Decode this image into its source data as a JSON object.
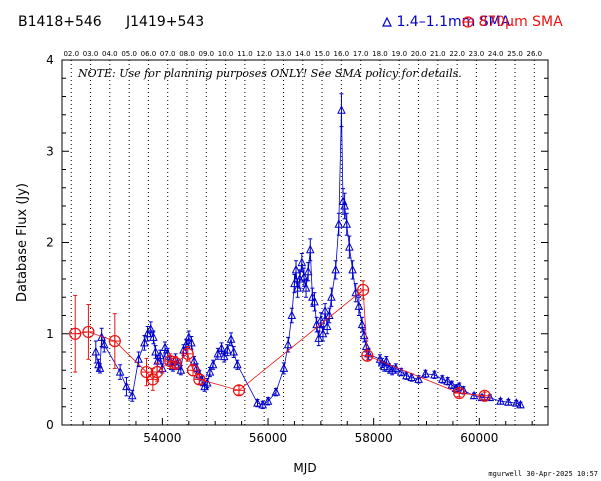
{
  "header": {
    "source": "B1418+546",
    "alias": "J1419+543",
    "legend_sma": "1.4–1.1mm SMA",
    "legend_870": "870μm SMA"
  },
  "colors": {
    "sma": "#0000cc",
    "s870": "#ee1111",
    "grid": "#000000",
    "text": "#000000"
  },
  "footer": "mgurwell 30-Apr-2025 10:57",
  "chart_data": {
    "type": "scatter",
    "title": "",
    "xlabel": "MJD",
    "ylabel": "Database Flux (Jy)",
    "xlim": [
      52100,
      61300
    ],
    "ylim": [
      0,
      4
    ],
    "x_ticks": [
      54000,
      56000,
      58000,
      60000
    ],
    "y_ticks": [
      0,
      1,
      2,
      3,
      4
    ],
    "note": "NOTE: Use for planning purposes ONLY! See SMA policy for details.",
    "year_lines": [
      {
        "label": "02.0",
        "mjd": 52275
      },
      {
        "label": "03.0",
        "mjd": 52640
      },
      {
        "label": "04.0",
        "mjd": 53005
      },
      {
        "label": "05.0",
        "mjd": 53371
      },
      {
        "label": "06.0",
        "mjd": 53736
      },
      {
        "label": "07.0",
        "mjd": 54101
      },
      {
        "label": "08.0",
        "mjd": 54466
      },
      {
        "label": "09.0",
        "mjd": 54832
      },
      {
        "label": "10.0",
        "mjd": 55197
      },
      {
        "label": "11.0",
        "mjd": 55562
      },
      {
        "label": "12.0",
        "mjd": 55927
      },
      {
        "label": "13.0",
        "mjd": 56293
      },
      {
        "label": "14.0",
        "mjd": 56658
      },
      {
        "label": "15.0",
        "mjd": 57023
      },
      {
        "label": "16.0",
        "mjd": 57388
      },
      {
        "label": "17.0",
        "mjd": 57754
      },
      {
        "label": "18.0",
        "mjd": 58119
      },
      {
        "label": "19.0",
        "mjd": 58484
      },
      {
        "label": "20.0",
        "mjd": 58849
      },
      {
        "label": "21.0",
        "mjd": 59215
      },
      {
        "label": "22.0",
        "mjd": 59580
      },
      {
        "label": "23.0",
        "mjd": 59945
      },
      {
        "label": "24.0",
        "mjd": 60310
      },
      {
        "label": "25.0",
        "mjd": 60676
      },
      {
        "label": "26.0",
        "mjd": 61041
      }
    ],
    "series": [
      {
        "name": "1.4–1.1mm SMA",
        "marker": "triangle",
        "points": [
          {
            "x": 52740,
            "y": 0.8,
            "err": 0.12
          },
          {
            "x": 52790,
            "y": 0.66,
            "err": 0.06
          },
          {
            "x": 52820,
            "y": 0.62,
            "err": 0.05
          },
          {
            "x": 52850,
            "y": 0.96,
            "err": 0.1
          },
          {
            "x": 52900,
            "y": 0.88,
            "err": 0.08
          },
          {
            "x": 53200,
            "y": 0.58,
            "err": 0.08
          },
          {
            "x": 53320,
            "y": 0.42,
            "err": 0.1
          },
          {
            "x": 53430,
            "y": 0.32,
            "err": 0.06
          },
          {
            "x": 53550,
            "y": 0.72,
            "err": 0.08
          },
          {
            "x": 53660,
            "y": 0.9,
            "err": 0.08
          },
          {
            "x": 53720,
            "y": 1.0,
            "err": 0.08
          },
          {
            "x": 53780,
            "y": 1.05,
            "err": 0.08
          },
          {
            "x": 53830,
            "y": 0.96,
            "err": 0.07
          },
          {
            "x": 53870,
            "y": 0.8,
            "err": 0.07
          },
          {
            "x": 53910,
            "y": 0.7,
            "err": 0.06
          },
          {
            "x": 53960,
            "y": 0.76,
            "err": 0.06
          },
          {
            "x": 54000,
            "y": 0.62,
            "err": 0.05
          },
          {
            "x": 54050,
            "y": 0.85,
            "err": 0.06
          },
          {
            "x": 54100,
            "y": 0.78,
            "err": 0.06
          },
          {
            "x": 54150,
            "y": 0.7,
            "err": 0.05
          },
          {
            "x": 54200,
            "y": 0.64,
            "err": 0.05
          },
          {
            "x": 54250,
            "y": 0.72,
            "err": 0.06
          },
          {
            "x": 54300,
            "y": 0.66,
            "err": 0.05
          },
          {
            "x": 54350,
            "y": 0.6,
            "err": 0.05
          },
          {
            "x": 54400,
            "y": 0.82,
            "err": 0.06
          },
          {
            "x": 54450,
            "y": 0.88,
            "err": 0.06
          },
          {
            "x": 54500,
            "y": 0.96,
            "err": 0.07
          },
          {
            "x": 54550,
            "y": 0.9,
            "err": 0.07
          },
          {
            "x": 54600,
            "y": 0.7,
            "err": 0.05
          },
          {
            "x": 54650,
            "y": 0.62,
            "err": 0.05
          },
          {
            "x": 54700,
            "y": 0.55,
            "err": 0.05
          },
          {
            "x": 54750,
            "y": 0.48,
            "err": 0.05
          },
          {
            "x": 54800,
            "y": 0.42,
            "err": 0.05
          },
          {
            "x": 54850,
            "y": 0.46,
            "err": 0.05
          },
          {
            "x": 54900,
            "y": 0.58,
            "err": 0.05
          },
          {
            "x": 54960,
            "y": 0.66,
            "err": 0.05
          },
          {
            "x": 55050,
            "y": 0.78,
            "err": 0.06
          },
          {
            "x": 55120,
            "y": 0.84,
            "err": 0.06
          },
          {
            "x": 55170,
            "y": 0.75,
            "err": 0.06
          },
          {
            "x": 55230,
            "y": 0.82,
            "err": 0.06
          },
          {
            "x": 55300,
            "y": 0.94,
            "err": 0.07
          },
          {
            "x": 55350,
            "y": 0.8,
            "err": 0.06
          },
          {
            "x": 55420,
            "y": 0.66,
            "err": 0.05
          },
          {
            "x": 55800,
            "y": 0.24,
            "err": 0.04
          },
          {
            "x": 55900,
            "y": 0.22,
            "err": 0.04
          },
          {
            "x": 56000,
            "y": 0.26,
            "err": 0.04
          },
          {
            "x": 56150,
            "y": 0.36,
            "err": 0.04
          },
          {
            "x": 56300,
            "y": 0.62,
            "err": 0.06
          },
          {
            "x": 56380,
            "y": 0.88,
            "err": 0.08
          },
          {
            "x": 56450,
            "y": 1.2,
            "err": 0.08
          },
          {
            "x": 56500,
            "y": 1.55,
            "err": 0.1
          },
          {
            "x": 56530,
            "y": 1.7,
            "err": 0.1
          },
          {
            "x": 56560,
            "y": 1.5,
            "err": 0.1
          },
          {
            "x": 56600,
            "y": 1.6,
            "err": 0.1
          },
          {
            "x": 56640,
            "y": 1.78,
            "err": 0.1
          },
          {
            "x": 56680,
            "y": 1.62,
            "err": 0.1
          },
          {
            "x": 56720,
            "y": 1.5,
            "err": 0.1
          },
          {
            "x": 56760,
            "y": 1.68,
            "err": 0.1
          },
          {
            "x": 56800,
            "y": 1.92,
            "err": 0.12
          },
          {
            "x": 56840,
            "y": 1.4,
            "err": 0.1
          },
          {
            "x": 56880,
            "y": 1.35,
            "err": 0.1
          },
          {
            "x": 56920,
            "y": 1.1,
            "err": 0.08
          },
          {
            "x": 56960,
            "y": 0.95,
            "err": 0.08
          },
          {
            "x": 57000,
            "y": 1.15,
            "err": 0.08
          },
          {
            "x": 57040,
            "y": 1.0,
            "err": 0.08
          },
          {
            "x": 57080,
            "y": 1.25,
            "err": 0.08
          },
          {
            "x": 57120,
            "y": 1.08,
            "err": 0.08
          },
          {
            "x": 57160,
            "y": 1.2,
            "err": 0.08
          },
          {
            "x": 57200,
            "y": 1.4,
            "err": 0.1
          },
          {
            "x": 57280,
            "y": 1.7,
            "err": 0.1
          },
          {
            "x": 57340,
            "y": 2.2,
            "err": 0.12
          },
          {
            "x": 57390,
            "y": 3.45,
            "err": 0.18
          },
          {
            "x": 57420,
            "y": 2.45,
            "err": 0.14
          },
          {
            "x": 57450,
            "y": 2.4,
            "err": 0.14
          },
          {
            "x": 57490,
            "y": 2.2,
            "err": 0.12
          },
          {
            "x": 57540,
            "y": 1.95,
            "err": 0.12
          },
          {
            "x": 57600,
            "y": 1.7,
            "err": 0.1
          },
          {
            "x": 57660,
            "y": 1.45,
            "err": 0.1
          },
          {
            "x": 57720,
            "y": 1.3,
            "err": 0.1
          },
          {
            "x": 57780,
            "y": 1.1,
            "err": 0.08
          },
          {
            "x": 57820,
            "y": 0.98,
            "err": 0.07
          },
          {
            "x": 57860,
            "y": 0.86,
            "err": 0.06
          },
          {
            "x": 57900,
            "y": 0.78,
            "err": 0.06
          },
          {
            "x": 58120,
            "y": 0.72,
            "err": 0.05
          },
          {
            "x": 58160,
            "y": 0.68,
            "err": 0.05
          },
          {
            "x": 58200,
            "y": 0.64,
            "err": 0.05
          },
          {
            "x": 58240,
            "y": 0.7,
            "err": 0.05
          },
          {
            "x": 58290,
            "y": 0.62,
            "err": 0.05
          },
          {
            "x": 58350,
            "y": 0.6,
            "err": 0.05
          },
          {
            "x": 58420,
            "y": 0.62,
            "err": 0.05
          },
          {
            "x": 58520,
            "y": 0.58,
            "err": 0.04
          },
          {
            "x": 58620,
            "y": 0.54,
            "err": 0.04
          },
          {
            "x": 58720,
            "y": 0.52,
            "err": 0.04
          },
          {
            "x": 58850,
            "y": 0.5,
            "err": 0.04
          },
          {
            "x": 58980,
            "y": 0.56,
            "err": 0.04
          },
          {
            "x": 59150,
            "y": 0.55,
            "err": 0.04
          },
          {
            "x": 59300,
            "y": 0.5,
            "err": 0.04
          },
          {
            "x": 59400,
            "y": 0.48,
            "err": 0.04
          },
          {
            "x": 59480,
            "y": 0.44,
            "err": 0.04
          },
          {
            "x": 59560,
            "y": 0.4,
            "err": 0.04
          },
          {
            "x": 59620,
            "y": 0.42,
            "err": 0.04
          },
          {
            "x": 59700,
            "y": 0.38,
            "err": 0.04
          },
          {
            "x": 59900,
            "y": 0.32,
            "err": 0.03
          },
          {
            "x": 60050,
            "y": 0.3,
            "err": 0.03
          },
          {
            "x": 60200,
            "y": 0.3,
            "err": 0.03
          },
          {
            "x": 60400,
            "y": 0.26,
            "err": 0.03
          },
          {
            "x": 60550,
            "y": 0.25,
            "err": 0.03
          },
          {
            "x": 60700,
            "y": 0.24,
            "err": 0.03
          },
          {
            "x": 60780,
            "y": 0.22,
            "err": 0.03
          }
        ]
      },
      {
        "name": "870μm SMA",
        "marker": "circle-plus",
        "points": [
          {
            "x": 52350,
            "y": 1.0,
            "err": 0.42
          },
          {
            "x": 52600,
            "y": 1.02,
            "err": 0.3
          },
          {
            "x": 53100,
            "y": 0.92,
            "err": 0.3
          },
          {
            "x": 53700,
            "y": 0.58,
            "err": 0.15
          },
          {
            "x": 53820,
            "y": 0.5,
            "err": 0.12
          },
          {
            "x": 53900,
            "y": 0.58,
            "err": 0.1
          },
          {
            "x": 54150,
            "y": 0.7,
            "err": 0.08
          },
          {
            "x": 54250,
            "y": 0.68,
            "err": 0.07
          },
          {
            "x": 54480,
            "y": 0.78,
            "err": 0.08
          },
          {
            "x": 54580,
            "y": 0.6,
            "err": 0.06
          },
          {
            "x": 54700,
            "y": 0.5,
            "err": 0.05
          },
          {
            "x": 55450,
            "y": 0.38,
            "err": 0.05
          },
          {
            "x": 57800,
            "y": 1.48,
            "err": 0.1
          },
          {
            "x": 57880,
            "y": 0.76,
            "err": 0.06
          },
          {
            "x": 59620,
            "y": 0.35,
            "err": 0.04
          },
          {
            "x": 60100,
            "y": 0.32,
            "err": 0.04
          }
        ]
      }
    ]
  }
}
